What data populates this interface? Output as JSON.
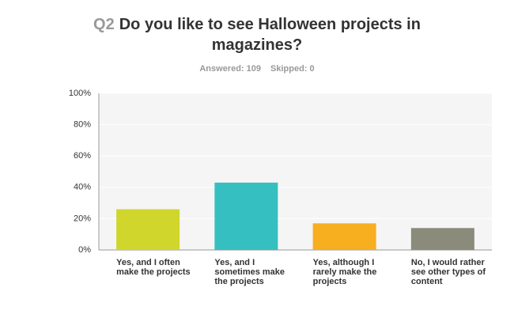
{
  "chart_data": {
    "type": "bar",
    "question_number": "Q2",
    "title": "Do you like to see Halloween projects in magazines?",
    "answered": "Answered: 109",
    "skipped": "Skipped: 0",
    "categories": [
      "Yes, and I often make the projects",
      "Yes, and I sometimes make the projects",
      "Yes, although I rarely make the projects",
      "No, I would rather see other types of content"
    ],
    "values": [
      26,
      43,
      17,
      14
    ],
    "colors": [
      "#d0d62b",
      "#35bfc0",
      "#f7ae1f",
      "#8a8b7a"
    ],
    "ylim": [
      0,
      100
    ],
    "yticks": [
      {
        "value": 0,
        "label": "0%"
      },
      {
        "value": 20,
        "label": "20%"
      },
      {
        "value": 40,
        "label": "40%"
      },
      {
        "value": 60,
        "label": "60%"
      },
      {
        "value": 80,
        "label": "80%"
      },
      {
        "value": 100,
        "label": "100%"
      }
    ],
    "grid": true
  }
}
